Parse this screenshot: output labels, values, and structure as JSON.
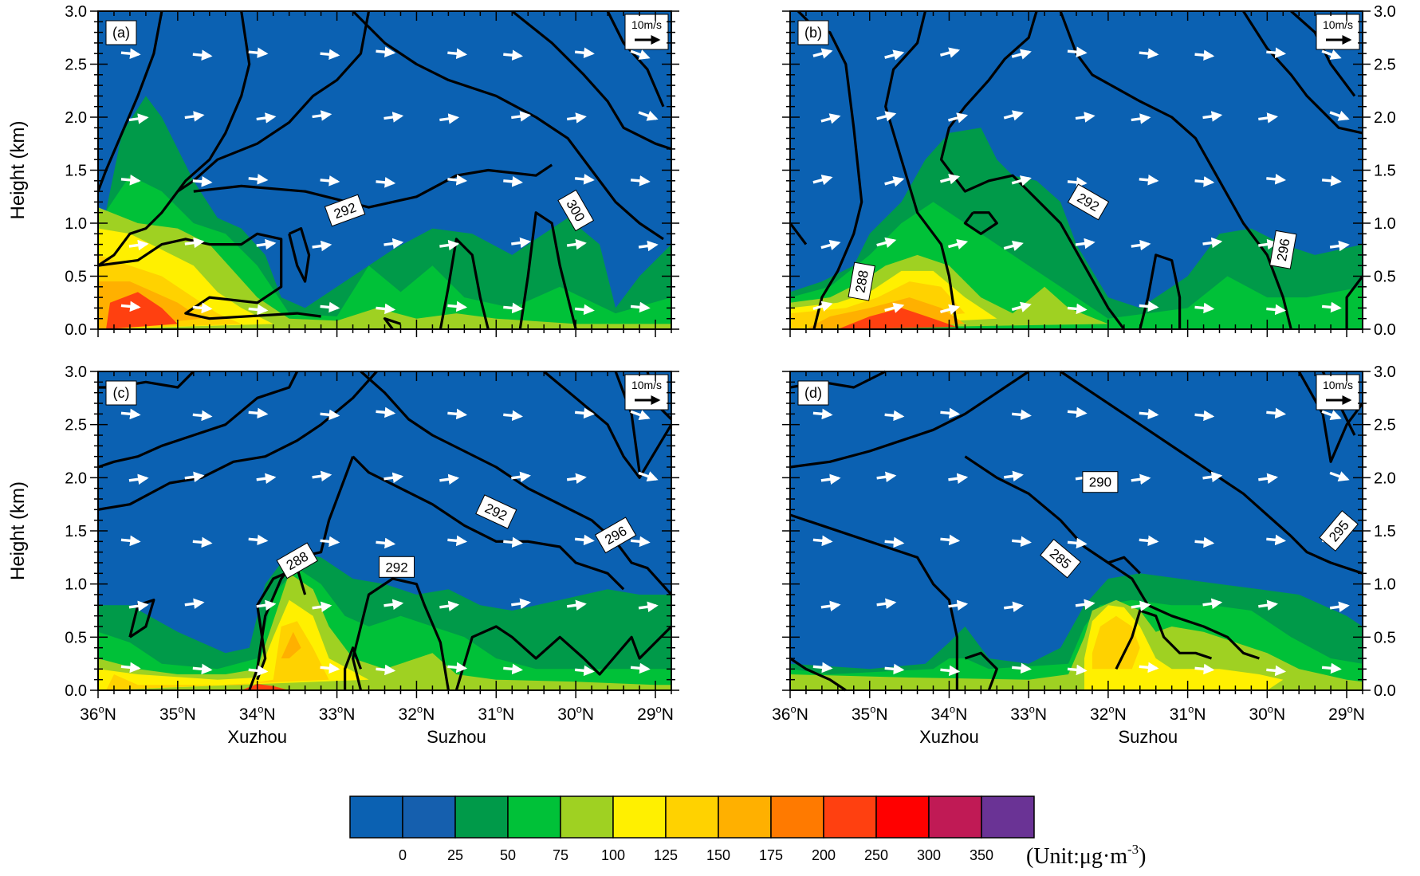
{
  "chart_data": {
    "type": "heatmap",
    "description_panels": [
      "(a)",
      "(b)",
      "(c)",
      "(d)"
    ],
    "ylabel": "Height (km)",
    "y_ticks": [
      "0.0",
      "0.5",
      "1.0",
      "1.5",
      "2.0",
      "2.5",
      "3.0"
    ],
    "y_range": [
      0,
      3
    ],
    "x_range": [
      36,
      28.8
    ],
    "x_ticks": [
      {
        "deg": "36",
        "suffix": "N",
        "value": 36
      },
      {
        "deg": "35",
        "suffix": "N",
        "value": 35
      },
      {
        "deg": "34",
        "suffix": "N",
        "value": 34
      },
      {
        "deg": "33",
        "suffix": "N",
        "value": 33
      },
      {
        "deg": "32",
        "suffix": "N",
        "value": 32
      },
      {
        "deg": "31",
        "suffix": "N",
        "value": 31
      },
      {
        "deg": "30",
        "suffix": "N",
        "value": 30
      },
      {
        "deg": "29",
        "suffix": "N",
        "value": 29
      }
    ],
    "degree_symbol": "o",
    "city_labels": [
      {
        "name": "Xuzhou",
        "lat": 34.0
      },
      {
        "name": "Suzhou",
        "lat": 31.5
      }
    ],
    "vector_reference": "10m/s",
    "panels": [
      {
        "label": "(a)",
        "contour_labels": [
          {
            "text": "292",
            "lat": 32.9,
            "h": 1.12,
            "angle": -20
          },
          {
            "text": "300",
            "lat": 30.0,
            "h": 1.12,
            "angle": 60
          }
        ]
      },
      {
        "label": "(b)",
        "contour_labels": [
          {
            "text": "292",
            "lat": 32.25,
            "h": 1.2,
            "angle": 30
          },
          {
            "text": "288",
            "lat": 35.1,
            "h": 0.45,
            "angle": -80
          },
          {
            "text": "296",
            "lat": 29.8,
            "h": 0.75,
            "angle": -80
          }
        ]
      },
      {
        "label": "(c)",
        "contour_labels": [
          {
            "text": "288",
            "lat": 33.5,
            "h": 1.22,
            "angle": -30
          },
          {
            "text": "292",
            "lat": 32.25,
            "h": 1.16,
            "angle": 0
          },
          {
            "text": "292",
            "lat": 31.0,
            "h": 1.68,
            "angle": 25
          },
          {
            "text": "296",
            "lat": 29.5,
            "h": 1.46,
            "angle": -30
          }
        ]
      },
      {
        "label": "(d)",
        "contour_labels": [
          {
            "text": "290",
            "lat": 32.1,
            "h": 1.96,
            "angle": 0
          },
          {
            "text": "285",
            "lat": 32.6,
            "h": 1.24,
            "angle": 40
          },
          {
            "text": "295",
            "lat": 29.1,
            "h": 1.5,
            "angle": -50
          }
        ]
      }
    ],
    "colorbar": {
      "levels": [
        "0",
        "25",
        "50",
        "75",
        "100",
        "125",
        "150",
        "175",
        "200",
        "250",
        "300",
        "350"
      ],
      "colors": [
        "#0B61B2",
        "#155FAE",
        "#009A49",
        "#00C138",
        "#9FD122",
        "#FFF000",
        "#FFD200",
        "#FFB000",
        "#FF7A00",
        "#FF4010",
        "#FF0000",
        "#C01A55",
        "#6A3395"
      ],
      "unit_prefix": "(Unit:μg·m",
      "unit_exponent": "-3",
      "unit_suffix": ")"
    }
  }
}
